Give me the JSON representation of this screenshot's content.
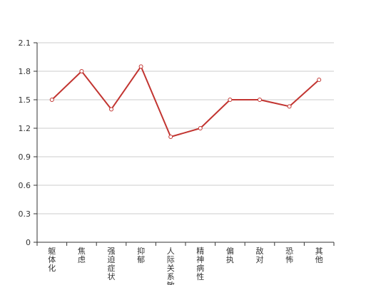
{
  "chart_data": {
    "type": "line",
    "title": "",
    "xlabel": "",
    "ylabel": "",
    "categories": [
      "躯体化",
      "焦虑",
      "强迫症状",
      "抑郁",
      "人际关系敏感",
      "精神病性",
      "偏执",
      "敌对",
      "恐怖",
      "其他"
    ],
    "series": [
      {
        "values": [
          1.5,
          1.8,
          1.4,
          1.85,
          1.11,
          1.2,
          1.5,
          1.5,
          1.43,
          1.71
        ],
        "color": "#c23531"
      }
    ],
    "yticks": [
      "0",
      "0.3",
      "0.6",
      "0.9",
      "1.2",
      "1.5",
      "1.8",
      "2.1"
    ],
    "ylim": [
      0,
      2.1
    ],
    "grid": true,
    "colors": {
      "grid": "#cccccc",
      "axis": "#333333",
      "text": "#333333"
    }
  }
}
